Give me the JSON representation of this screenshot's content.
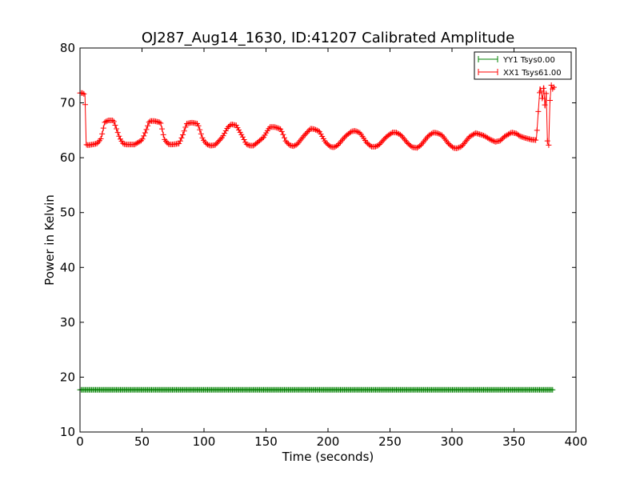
{
  "chart_data": {
    "type": "line",
    "title": "OJ287_Aug14_1630, ID:41207 Calibrated Amplitude",
    "xlabel": "Time (seconds)",
    "ylabel": "Power in Kelvin",
    "xlim": [
      0,
      400
    ],
    "ylim": [
      10,
      80
    ],
    "xticks": [
      0,
      50,
      100,
      150,
      200,
      250,
      300,
      350,
      400
    ],
    "yticks": [
      10,
      20,
      30,
      40,
      50,
      60,
      70,
      80
    ],
    "grid": false,
    "legend_position": "top-right",
    "marker": "+",
    "series": [
      {
        "name": "YY1 Tsys0.00",
        "color": "#008000",
        "x": [
          0,
          382
        ],
        "y": [
          17.7,
          17.7
        ],
        "constant": true
      },
      {
        "name": "XX1 Tsys61.00",
        "color": "#ff0000",
        "x": [
          0,
          2,
          4,
          5,
          6,
          7,
          10,
          14,
          17,
          20,
          23,
          27,
          32,
          35,
          38,
          41,
          44,
          50,
          53,
          56,
          60,
          65,
          68,
          71,
          74,
          80,
          83,
          86,
          90,
          95,
          99,
          102,
          105,
          109,
          115,
          119,
          122,
          126,
          131,
          134,
          137,
          140,
          148,
          153,
          157,
          162,
          166,
          169,
          172,
          175,
          181,
          186,
          189,
          193,
          198,
          202,
          205,
          208,
          214,
          219,
          222,
          226,
          231,
          235,
          238,
          241,
          247,
          252,
          255,
          259,
          264,
          268,
          272,
          275,
          281,
          285,
          288,
          292,
          297,
          301,
          304,
          308,
          314,
          319,
          322,
          326,
          331,
          335,
          339,
          342,
          348,
          352,
          355,
          359,
          364,
          368,
          371,
          373,
          374,
          375,
          376,
          377,
          378,
          379,
          380,
          381,
          382,
          383
        ],
        "y": [
          71.8,
          71.8,
          71.5,
          62.4,
          62.3,
          62.3,
          62.4,
          62.6,
          63.5,
          66.5,
          66.8,
          66.8,
          63.6,
          62.5,
          62.4,
          62.4,
          62.4,
          63.2,
          64.8,
          66.7,
          66.7,
          66.4,
          63.4,
          62.5,
          62.4,
          62.6,
          64.2,
          66.2,
          66.4,
          66.2,
          63.4,
          62.5,
          62.2,
          62.3,
          63.8,
          65.5,
          66.1,
          65.9,
          63.9,
          62.5,
          62.2,
          62.2,
          63.7,
          65.6,
          65.6,
          65.2,
          63.0,
          62.3,
          62.1,
          62.4,
          64.1,
          65.3,
          65.2,
          64.8,
          62.8,
          62.0,
          61.9,
          62.3,
          63.9,
          64.8,
          64.9,
          64.5,
          62.8,
          62.0,
          62.0,
          62.3,
          63.8,
          64.6,
          64.6,
          64.1,
          62.7,
          61.9,
          61.8,
          62.3,
          64.0,
          64.6,
          64.5,
          64.1,
          62.6,
          61.8,
          61.7,
          62.1,
          63.8,
          64.5,
          64.3,
          64.0,
          63.3,
          62.9,
          63.1,
          63.8,
          64.6,
          64.4,
          63.9,
          63.6,
          63.3,
          63.2,
          73.0,
          70.5,
          73.2,
          69.0,
          72.0,
          62.6,
          62.3,
          70.3,
          73.3,
          72.5,
          72.8,
          73.0
        ]
      }
    ]
  }
}
